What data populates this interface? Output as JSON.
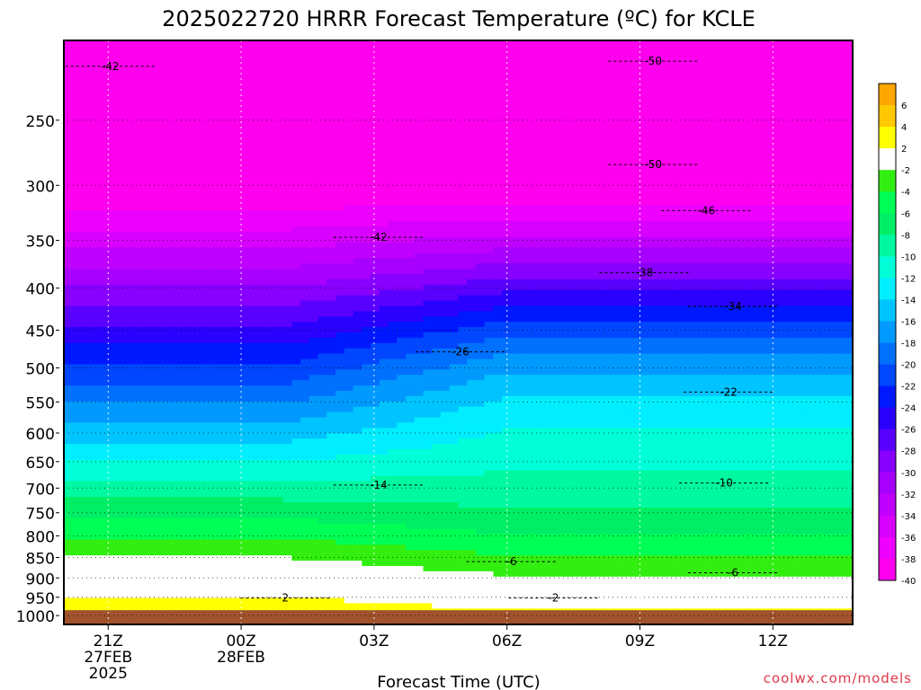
{
  "chart_data": {
    "type": "heatmap",
    "title": "2025022720 HRRR Forecast Temperature (ºC) for KCLE",
    "xlabel": "Forecast Time (UTC)",
    "ylabel": "",
    "credit": "coolwx.com/models",
    "x_ticks": [
      {
        "hour": 21,
        "lines": [
          "21Z",
          "27FEB",
          "2025"
        ]
      },
      {
        "hour": 24,
        "lines": [
          "00Z",
          "28FEB"
        ]
      },
      {
        "hour": 27,
        "lines": [
          "03Z"
        ]
      },
      {
        "hour": 30,
        "lines": [
          "06Z"
        ]
      },
      {
        "hour": 33,
        "lines": [
          "09Z"
        ]
      },
      {
        "hour": 36,
        "lines": [
          "12Z"
        ]
      }
    ],
    "xlim": [
      20,
      37.8
    ],
    "y_ticks": [
      250,
      300,
      350,
      400,
      450,
      500,
      550,
      600,
      650,
      700,
      750,
      800,
      850,
      900,
      950,
      1000
    ],
    "ylim_hpa": [
      200,
      1025
    ],
    "y_scale": "log",
    "colorbar": {
      "levels": [
        6,
        4,
        2,
        -2,
        -4,
        -6,
        -8,
        -10,
        -12,
        -14,
        -16,
        -18,
        -20,
        -22,
        -24,
        -26,
        -28,
        -30,
        -32,
        -34,
        -36,
        -38,
        -40
      ],
      "colors": [
        "#ffa500",
        "#ffc800",
        "#ffff00",
        "#ffffff",
        "#33ee11",
        "#00ff55",
        "#00ee66",
        "#00f9a0",
        "#00ffd8",
        "#00eeff",
        "#00c4ff",
        "#009aff",
        "#0070ff",
        "#0047ff",
        "#0018ff",
        "#2a00ff",
        "#5a00ff",
        "#8800ff",
        "#a700ff",
        "#c000ff",
        "#d800ff",
        "#ee00ff",
        "#ff00ee"
      ]
    },
    "terrain_color": "#a0522d",
    "terrain_top_hpa": 985,
    "isotherms": [
      {
        "temp": -42,
        "label_time": 21.05,
        "label_p": 215
      },
      {
        "temp": -50,
        "label_time": 33.3,
        "label_p": 212
      },
      {
        "temp": -50,
        "label_time": 33.3,
        "label_p": 283
      },
      {
        "temp": -46,
        "label_time": 34.5,
        "label_p": 322
      },
      {
        "temp": -42,
        "label_time": 27.1,
        "label_p": 347
      },
      {
        "temp": -38,
        "label_time": 33.1,
        "label_p": 383
      },
      {
        "temp": -34,
        "label_time": 35.1,
        "label_p": 421
      },
      {
        "temp": -26,
        "label_time": 28.95,
        "label_p": 478
      },
      {
        "temp": -22,
        "label_time": 35.0,
        "label_p": 535
      },
      {
        "temp": -14,
        "label_time": 27.1,
        "label_p": 694
      },
      {
        "temp": -10,
        "label_time": 34.9,
        "label_p": 690
      },
      {
        "temp": -6,
        "label_time": 30.1,
        "label_p": 860
      },
      {
        "temp": -6,
        "label_time": 35.1,
        "label_p": 887
      },
      {
        "temp": -2,
        "label_time": 31.05,
        "label_p": 952
      },
      {
        "temp": 2,
        "label_time": 25.0,
        "label_p": 952
      }
    ],
    "grid": true
  }
}
